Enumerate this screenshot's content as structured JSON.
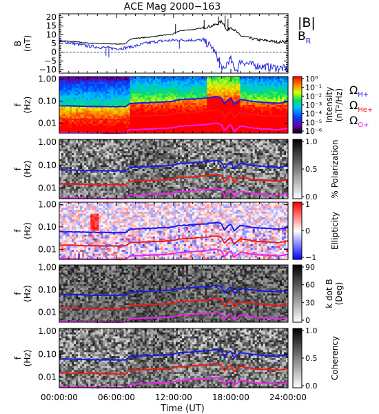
{
  "title": "ACE Mag 2000−163",
  "x_axis": {
    "label": "Time (UT)",
    "ticks": [
      "00:00:00",
      "06:00:00",
      "12:00:00",
      "18:00:00",
      "24:00:00"
    ],
    "tick_hours": [
      0,
      6,
      12,
      18,
      24
    ]
  },
  "colors": {
    "total_field": "#000000",
    "radial_field": "#2222dd",
    "h_plus": "#1a1aee",
    "he_plus": "#ee1a1a",
    "o_plus": "#ee22ee"
  },
  "chart_data": [
    {
      "type": "line",
      "ylabel_top": "B",
      "ylabel_bottom": "(nT)",
      "ylim": [
        -12,
        22
      ],
      "yticks": [
        -10,
        -5,
        0,
        5,
        10,
        15,
        20
      ],
      "legend": [
        {
          "label": "|B|",
          "color": "#000000"
        },
        {
          "label": "B",
          "sub": "R",
          "color": "#2222dd"
        }
      ],
      "series": [
        {
          "name": "|B|",
          "x_hours": [
            0,
            1,
            2,
            3,
            4,
            5,
            6,
            7,
            7.4,
            8,
            9,
            10,
            11,
            12,
            12.5,
            13,
            14,
            15,
            15.5,
            16,
            16.5,
            17,
            17.3,
            17.6,
            18,
            18.3,
            18.7,
            19,
            20,
            21,
            22,
            23,
            24
          ],
          "values": [
            6.5,
            6.3,
            5.8,
            5.2,
            5,
            4.8,
            4.7,
            4.8,
            7.5,
            8,
            8.4,
            9,
            9.8,
            10.5,
            12,
            12.5,
            13,
            13.8,
            14.5,
            15,
            16,
            17.5,
            16,
            12,
            14.5,
            13,
            11,
            9.5,
            8,
            7,
            6.5,
            5.8,
            6.5
          ]
        },
        {
          "name": "B_R",
          "x_hours": [
            0,
            1,
            2,
            3,
            4,
            5,
            6,
            7,
            7.4,
            8,
            9,
            10,
            11,
            12,
            13,
            14,
            15,
            15.5,
            16,
            16.5,
            17,
            17.3,
            17.6,
            18,
            18.3,
            18.7,
            19,
            20,
            21,
            22,
            23,
            24
          ],
          "values": [
            6,
            5.5,
            4.5,
            3.5,
            3,
            2.5,
            2,
            2.5,
            3,
            3.5,
            5,
            6,
            6.5,
            6.8,
            7,
            7,
            6.8,
            5,
            3,
            -2,
            -8,
            -11,
            -6,
            -4,
            -9,
            -10,
            -5,
            -7,
            -8,
            -8.5,
            -9,
            -9.5
          ]
        }
      ]
    },
    {
      "type": "heatmap",
      "ylabel_top": "f",
      "ylabel_bottom": "(Hz)",
      "yticks": [
        "1.00",
        "0.10",
        "0.01"
      ],
      "colorbar_title_top": "Intensity",
      "colorbar_title_bottom": "(nT²/Hz)",
      "colorbar_ticks": [
        "10⁰",
        "10⁻¹",
        "10⁻²",
        "10⁻³",
        "10⁻⁴",
        "10⁻⁵",
        "10⁻⁶"
      ],
      "colormap": "rainbow"
    },
    {
      "type": "heatmap",
      "ylabel_top": "f",
      "ylabel_bottom": "(Hz)",
      "yticks": [
        "1.00",
        "0.10",
        "0.01"
      ],
      "colorbar_title": "% Polarization",
      "colorbar_ticks": [
        "1.0",
        "0.5",
        "0.0"
      ],
      "colormap": "gray"
    },
    {
      "type": "heatmap",
      "ylabel_top": "f",
      "ylabel_bottom": "(Hz)",
      "yticks": [
        "1.00",
        "0.10",
        "0.01"
      ],
      "colorbar_title": "Ellipticity",
      "colorbar_ticks": [
        "1",
        "0",
        "−1"
      ],
      "colormap": "bwr"
    },
    {
      "type": "heatmap",
      "ylabel_top": "f",
      "ylabel_bottom": "(Hz)",
      "yticks": [
        "1.00",
        "0.10",
        "0.01"
      ],
      "colorbar_title_top": "k dot B",
      "colorbar_title_bottom": "(Deg)",
      "colorbar_ticks": [
        "90",
        "60",
        "30",
        "0"
      ],
      "colormap": "gray"
    },
    {
      "type": "heatmap",
      "ylabel_top": "f",
      "ylabel_bottom": "(Hz)",
      "yticks": [
        "1.00",
        "0.10",
        "0.01"
      ],
      "colorbar_title": "Coherency",
      "colorbar_ticks": [
        "1.0",
        "0.5",
        "0.0"
      ],
      "colormap": "gray"
    }
  ],
  "gyro_lines": {
    "legend": [
      {
        "symbol": "Ω",
        "sub": "H+",
        "color": "#1a1aee"
      },
      {
        "symbol": "Ω",
        "sub": "He+",
        "color": "#ee1a1a"
      },
      {
        "symbol": "Ω",
        "sub": "O+",
        "color": "#ee22ee"
      }
    ],
    "x_hours": [
      0,
      3,
      6,
      7,
      7.4,
      9,
      11,
      12,
      12.5,
      14,
      15.5,
      16,
      16.5,
      17,
      17.3,
      17.6,
      18,
      18.3,
      18.7,
      19,
      20,
      21,
      22,
      23,
      24
    ],
    "h_plus_hz": [
      0.062,
      0.058,
      0.056,
      0.057,
      0.08,
      0.085,
      0.092,
      0.1,
      0.115,
      0.125,
      0.14,
      0.15,
      0.16,
      0.14,
      0.07,
      0.1,
      0.14,
      0.065,
      0.09,
      0.12,
      0.1,
      0.09,
      0.085,
      0.08,
      0.095
    ]
  }
}
